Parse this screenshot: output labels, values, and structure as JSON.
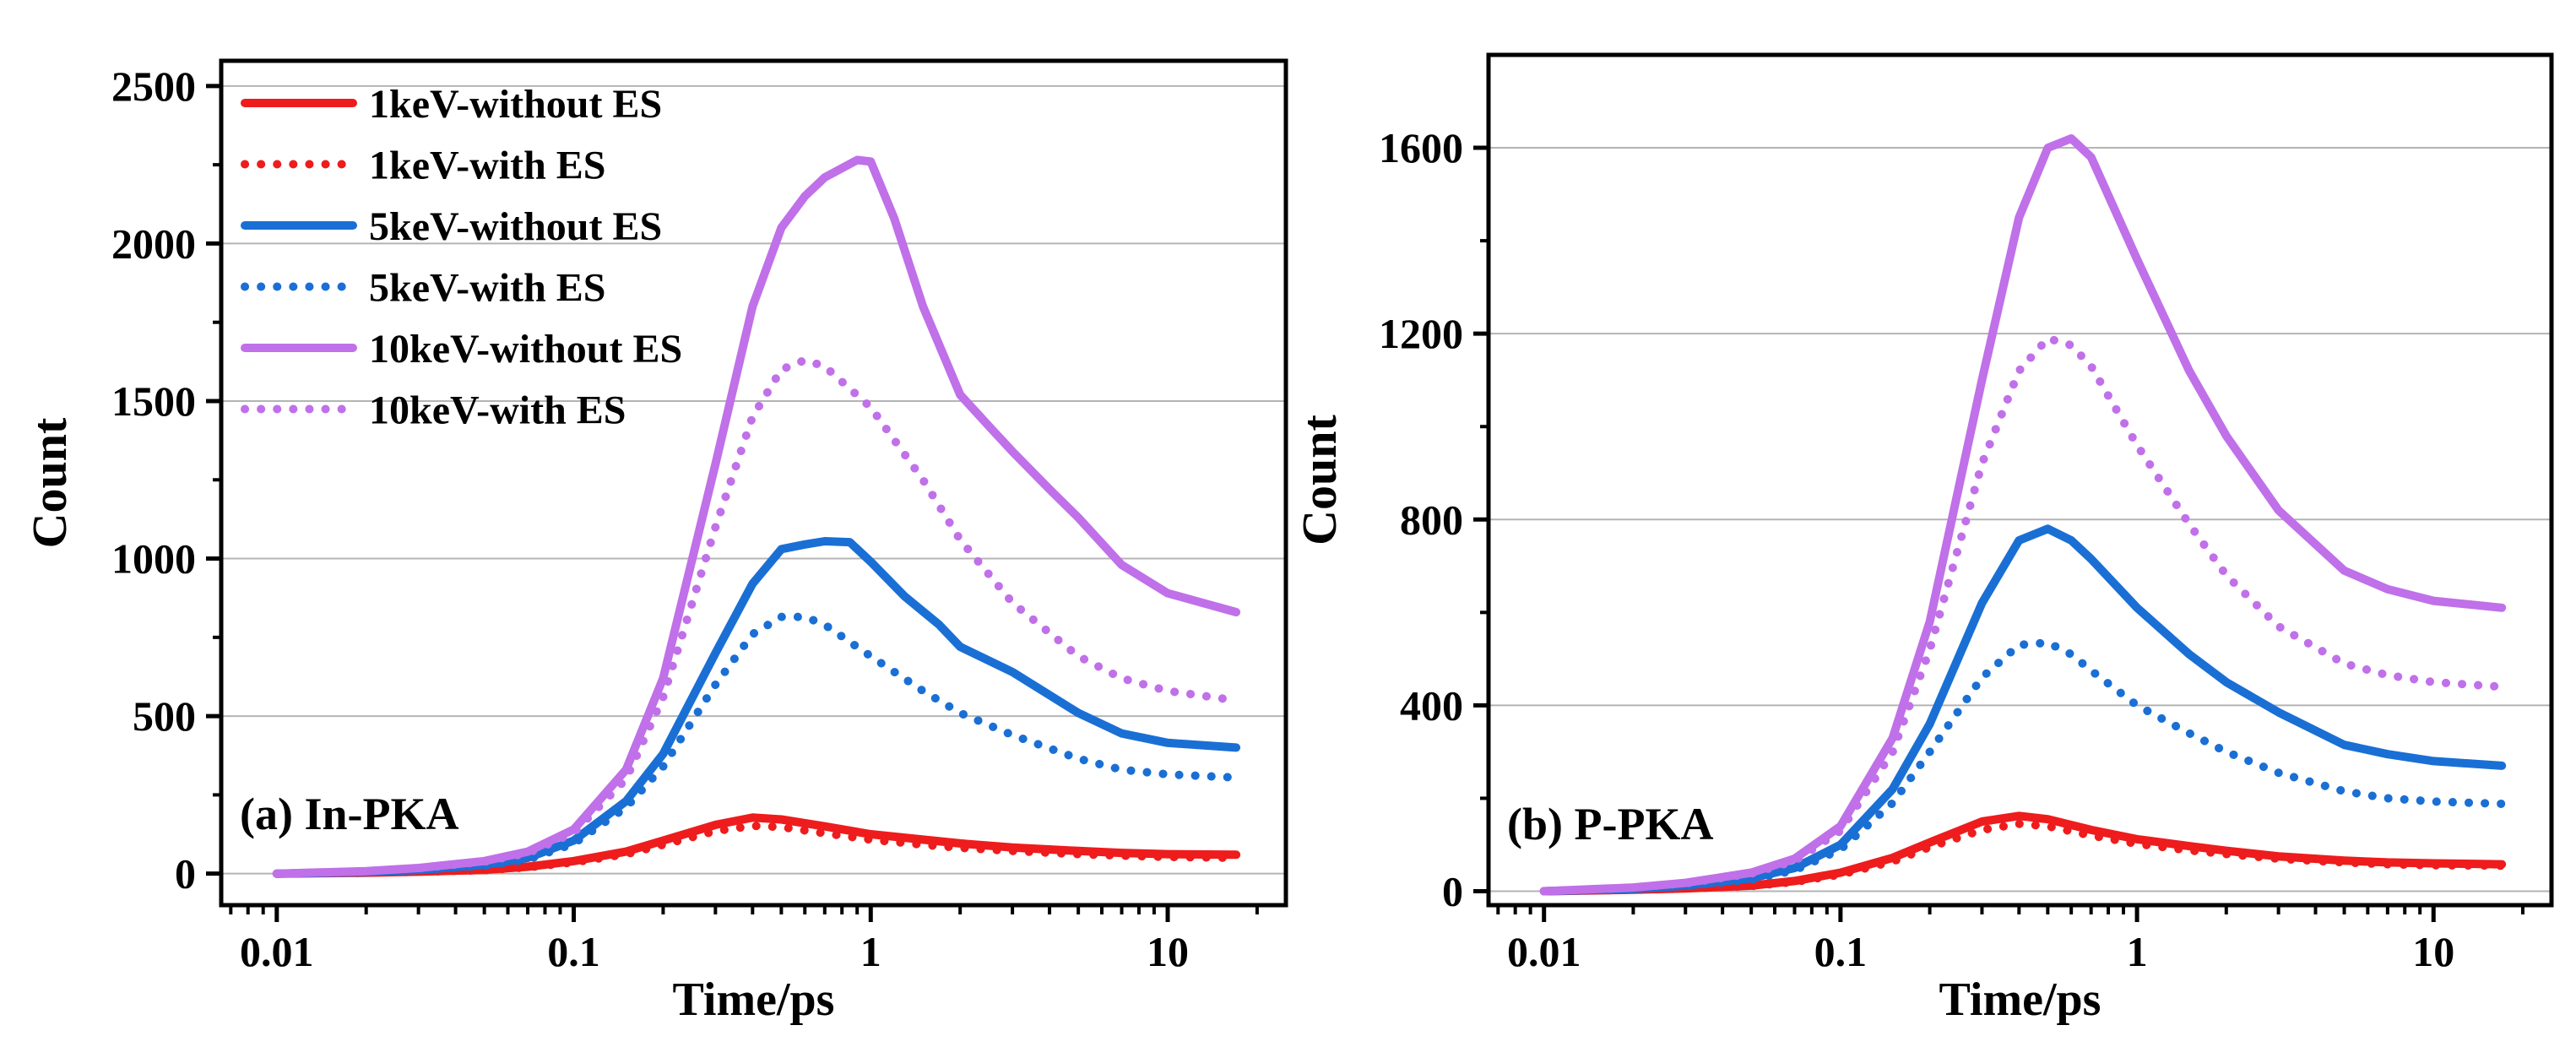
{
  "chart_data": [
    {
      "type": "line",
      "panel_label": "(a) In-PKA",
      "xlabel": "Time/ps",
      "ylabel": "Count",
      "xscale": "log",
      "xlim": [
        0.0065,
        25
      ],
      "ylim": [
        -100,
        2580
      ],
      "xticks": [
        0.01,
        0.1,
        1,
        10
      ],
      "xtick_labels": [
        "0.01",
        "0.1",
        "1",
        "10"
      ],
      "yticks": [
        0,
        500,
        1000,
        1500,
        2000,
        2500
      ],
      "ytick_labels": [
        "0",
        "500",
        "1000",
        "1500",
        "2000",
        "2500"
      ],
      "grid": "horizontal",
      "legend": {
        "placement": "top-left"
      },
      "series": [
        {
          "name": "1keV-without ES",
          "color": "#ee1c1c",
          "style": "solid",
          "x": [
            0.01,
            0.02,
            0.03,
            0.05,
            0.07,
            0.1,
            0.15,
            0.2,
            0.3,
            0.4,
            0.5,
            0.7,
            1,
            1.5,
            2,
            3,
            5,
            7,
            10,
            17
          ],
          "y": [
            0,
            3,
            6,
            12,
            22,
            40,
            70,
            105,
            155,
            178,
            172,
            150,
            125,
            108,
            96,
            83,
            72,
            66,
            62,
            60
          ]
        },
        {
          "name": "1keV-with ES",
          "color": "#ee1c1c",
          "style": "dotted",
          "x": [
            0.01,
            0.02,
            0.03,
            0.05,
            0.07,
            0.1,
            0.15,
            0.2,
            0.3,
            0.4,
            0.5,
            0.7,
            1,
            1.5,
            2,
            3,
            5,
            7,
            10,
            17
          ],
          "y": [
            0,
            3,
            6,
            11,
            20,
            36,
            62,
            92,
            135,
            152,
            148,
            128,
            108,
            92,
            82,
            72,
            62,
            57,
            53,
            50
          ]
        },
        {
          "name": "5keV-without ES",
          "color": "#1a6fd4",
          "style": "solid",
          "x": [
            0.01,
            0.02,
            0.03,
            0.05,
            0.07,
            0.1,
            0.15,
            0.2,
            0.3,
            0.4,
            0.5,
            0.6,
            0.7,
            0.85,
            1,
            1.3,
            1.7,
            2,
            3,
            5,
            7,
            10,
            17
          ],
          "y": [
            0,
            5,
            12,
            28,
            50,
            105,
            230,
            380,
            700,
            920,
            1030,
            1045,
            1055,
            1052,
            990,
            880,
            790,
            720,
            640,
            510,
            445,
            415,
            400
          ]
        },
        {
          "name": "5keV-with ES",
          "color": "#1a6fd4",
          "style": "dotted",
          "x": [
            0.01,
            0.02,
            0.03,
            0.05,
            0.07,
            0.1,
            0.15,
            0.2,
            0.3,
            0.4,
            0.5,
            0.6,
            0.7,
            1,
            1.5,
            2,
            3,
            5,
            7,
            10,
            17
          ],
          "y": [
            0,
            5,
            11,
            25,
            45,
            95,
            210,
            340,
            600,
            760,
            815,
            815,
            790,
            690,
            580,
            510,
            440,
            365,
            330,
            315,
            305
          ]
        },
        {
          "name": "10keV-without ES",
          "color": "#c070e8",
          "style": "solid",
          "x": [
            0.01,
            0.02,
            0.03,
            0.05,
            0.07,
            0.1,
            0.15,
            0.2,
            0.3,
            0.4,
            0.5,
            0.6,
            0.7,
            0.9,
            1,
            1.2,
            1.5,
            2,
            2.5,
            3,
            4,
            5,
            7,
            10,
            17
          ],
          "y": [
            0,
            8,
            18,
            40,
            70,
            140,
            330,
            620,
            1300,
            1800,
            2050,
            2150,
            2210,
            2265,
            2260,
            2080,
            1800,
            1520,
            1420,
            1340,
            1220,
            1130,
            980,
            890,
            830
          ]
        },
        {
          "name": "10keV-with ES",
          "color": "#c070e8",
          "style": "dotted",
          "x": [
            0.01,
            0.02,
            0.03,
            0.05,
            0.07,
            0.1,
            0.15,
            0.2,
            0.3,
            0.4,
            0.5,
            0.6,
            0.7,
            1,
            1.5,
            2,
            3,
            5,
            7,
            10,
            17
          ],
          "y": [
            0,
            8,
            17,
            38,
            65,
            130,
            300,
            560,
            1100,
            1450,
            1600,
            1630,
            1610,
            1480,
            1250,
            1060,
            860,
            690,
            620,
            580,
            550
          ]
        }
      ]
    },
    {
      "type": "line",
      "panel_label": "(b) P-PKA",
      "xlabel": "Time/ps",
      "ylabel": "Count",
      "xscale": "log",
      "xlim": [
        0.0065,
        25
      ],
      "ylim": [
        -30,
        1800
      ],
      "xticks": [
        0.01,
        0.1,
        1,
        10
      ],
      "xtick_labels": [
        "0.01",
        "0.1",
        "1",
        "10"
      ],
      "yticks": [
        0,
        400,
        800,
        1200,
        1600
      ],
      "ytick_labels": [
        "0",
        "400",
        "800",
        "1200",
        "1600"
      ],
      "grid": "horizontal",
      "series": [
        {
          "name": "1keV-without ES",
          "color": "#ee1c1c",
          "style": "solid",
          "x": [
            0.01,
            0.02,
            0.03,
            0.05,
            0.07,
            0.1,
            0.15,
            0.2,
            0.3,
            0.4,
            0.5,
            0.7,
            1,
            1.5,
            2,
            3,
            5,
            7,
            10,
            17
          ],
          "y": [
            0,
            3,
            6,
            12,
            22,
            40,
            72,
            105,
            150,
            162,
            155,
            132,
            112,
            97,
            87,
            75,
            66,
            62,
            60,
            58
          ]
        },
        {
          "name": "1keV-with ES",
          "color": "#ee1c1c",
          "style": "dotted",
          "x": [
            0.01,
            0.02,
            0.03,
            0.05,
            0.07,
            0.1,
            0.15,
            0.2,
            0.3,
            0.4,
            0.5,
            0.7,
            1,
            1.5,
            2,
            3,
            5,
            7,
            10,
            17
          ],
          "y": [
            0,
            3,
            6,
            11,
            20,
            36,
            64,
            95,
            132,
            145,
            140,
            120,
            102,
            88,
            80,
            70,
            62,
            58,
            56,
            55
          ]
        },
        {
          "name": "5keV-without ES",
          "color": "#1a6fd4",
          "style": "solid",
          "x": [
            0.01,
            0.02,
            0.03,
            0.05,
            0.07,
            0.1,
            0.15,
            0.2,
            0.3,
            0.4,
            0.5,
            0.6,
            0.7,
            1,
            1.5,
            2,
            3,
            5,
            7,
            10,
            17
          ],
          "y": [
            0,
            5,
            12,
            28,
            50,
            100,
            220,
            360,
            620,
            755,
            780,
            755,
            715,
            610,
            510,
            450,
            385,
            315,
            295,
            280,
            270
          ]
        },
        {
          "name": "5keV-with ES",
          "color": "#1a6fd4",
          "style": "dotted",
          "x": [
            0.01,
            0.02,
            0.03,
            0.05,
            0.07,
            0.1,
            0.15,
            0.2,
            0.3,
            0.4,
            0.5,
            0.6,
            0.7,
            1,
            1.5,
            2,
            3,
            5,
            7,
            10,
            17
          ],
          "y": [
            0,
            5,
            11,
            25,
            45,
            90,
            190,
            300,
            460,
            530,
            535,
            510,
            475,
            400,
            340,
            300,
            255,
            215,
            200,
            193,
            188
          ]
        },
        {
          "name": "10keV-without ES",
          "color": "#c070e8",
          "style": "solid",
          "x": [
            0.01,
            0.02,
            0.03,
            0.05,
            0.07,
            0.1,
            0.15,
            0.2,
            0.3,
            0.4,
            0.5,
            0.6,
            0.7,
            1,
            1.5,
            2,
            3,
            5,
            7,
            10,
            17
          ],
          "y": [
            0,
            8,
            18,
            40,
            70,
            140,
            330,
            580,
            1100,
            1450,
            1600,
            1620,
            1580,
            1360,
            1120,
            980,
            820,
            690,
            650,
            625,
            610
          ]
        },
        {
          "name": "10keV-with ES",
          "color": "#c070e8",
          "style": "dotted",
          "x": [
            0.01,
            0.02,
            0.03,
            0.05,
            0.07,
            0.1,
            0.15,
            0.2,
            0.3,
            0.4,
            0.5,
            0.6,
            0.7,
            1,
            1.5,
            2,
            3,
            5,
            7,
            10,
            17
          ],
          "y": [
            0,
            8,
            17,
            38,
            65,
            130,
            300,
            520,
            920,
            1120,
            1190,
            1175,
            1130,
            960,
            790,
            680,
            570,
            490,
            465,
            450,
            440
          ]
        }
      ]
    }
  ]
}
